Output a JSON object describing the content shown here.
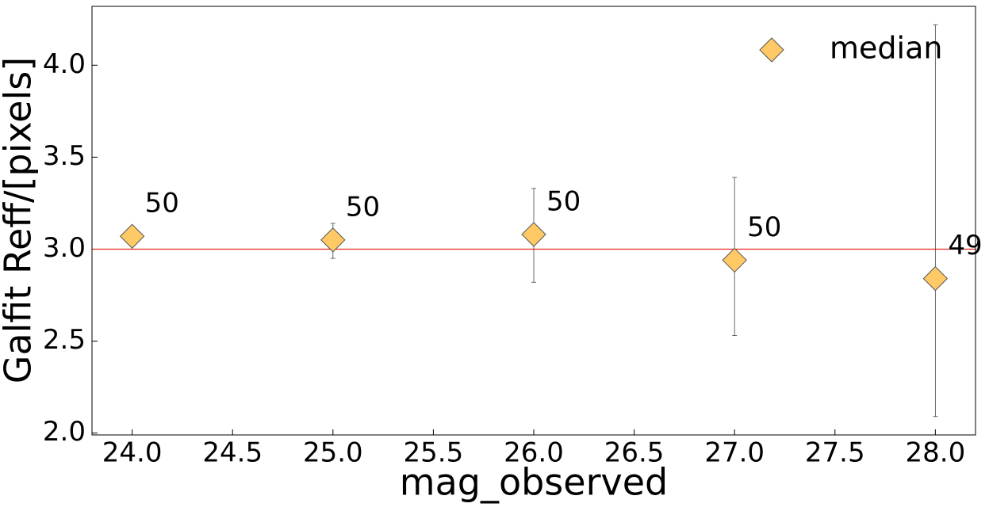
{
  "chart_data": {
    "type": "errorbar",
    "xlabel": "mag_observed",
    "ylabel": "Galfit Reff/[pixels]",
    "series": [
      {
        "name": "median",
        "color": "#ffc966",
        "edgecolor": "#555555",
        "x": [
          24.0,
          25.0,
          26.0,
          27.0,
          28.0
        ],
        "values": [
          3.07,
          3.05,
          3.08,
          2.94,
          2.84
        ],
        "yerr_lower": [
          0.03,
          0.1,
          0.26,
          0.41,
          0.75
        ],
        "yerr_upper": [
          0.03,
          0.09,
          0.25,
          0.45,
          1.38
        ],
        "counts": [
          50,
          50,
          50,
          50,
          49
        ]
      }
    ],
    "hline": {
      "value": 3.0,
      "color": "#e8251f"
    },
    "xlim": [
      23.8,
      28.2
    ],
    "ylim": [
      1.99,
      4.32
    ],
    "xticks": [
      {
        "value": 24.0,
        "label": "24.0"
      },
      {
        "value": 24.5,
        "label": "24.5"
      },
      {
        "value": 25.0,
        "label": "25.0"
      },
      {
        "value": 25.5,
        "label": "25.5"
      },
      {
        "value": 26.0,
        "label": "26.0"
      },
      {
        "value": 26.5,
        "label": "26.5"
      },
      {
        "value": 27.0,
        "label": "27.0"
      },
      {
        "value": 27.5,
        "label": "27.5"
      },
      {
        "value": 28.0,
        "label": "28.0"
      }
    ],
    "yticks": [
      {
        "value": 2.0,
        "label": "2.0"
      },
      2.5,
      {
        "value": 3.0,
        "label": "3.0"
      },
      3.5,
      {
        "value": 4.0,
        "label": "4.0"
      }
    ],
    "legend": "upper right"
  }
}
